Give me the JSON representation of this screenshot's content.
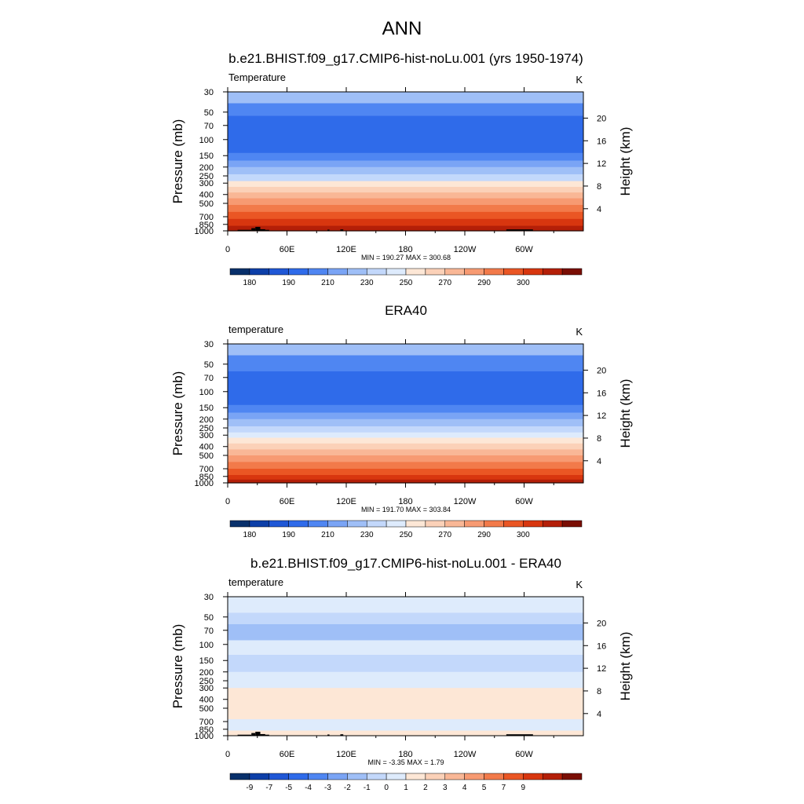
{
  "page": {
    "title": "ANN"
  },
  "colors": {
    "palette": [
      "#08306b",
      "#0d3fa8",
      "#1f57d6",
      "#2f6bea",
      "#4f86f2",
      "#7aa4f5",
      "#9fbff7",
      "#c3d8fb",
      "#deebfc",
      "#fde7d6",
      "#fbd1b8",
      "#f9b796",
      "#f79a72",
      "#f27a4a",
      "#ea5624",
      "#d8360f",
      "#b41f08",
      "#7a0e04"
    ]
  },
  "chart_data": [
    {
      "type": "heatmap",
      "title": "b.e21.BHIST.f09_g17.CMIP6-hist-noLu.001 (yrs 1950-1974)",
      "left_label": "Temperature",
      "units": "K",
      "ylabel": "Pressure (mb)",
      "ylabel_right": "Height (km)",
      "x_ticks": [
        "0",
        "60E",
        "120E",
        "180",
        "120W",
        "60W"
      ],
      "p_ticks": [
        "30",
        "50",
        "70",
        "100",
        "150",
        "200",
        "250",
        "300",
        "400",
        "500",
        "700",
        "850",
        "1000"
      ],
      "h_ticks": [
        "20",
        "16",
        "12",
        "8",
        "4"
      ],
      "minmax": "MIN = 190.27  MAX = 300.68",
      "colorbar_labels": [
        "180",
        "190",
        "210",
        "230",
        "250",
        "270",
        "290",
        "300"
      ],
      "bands": [
        {
          "p_top": 30,
          "p_bottom": 40,
          "color_index": 6
        },
        {
          "p_top": 40,
          "p_bottom": 55,
          "color_index": 4
        },
        {
          "p_top": 55,
          "p_bottom": 140,
          "color_index": 3
        },
        {
          "p_top": 140,
          "p_bottom": 170,
          "color_index": 4
        },
        {
          "p_top": 170,
          "p_bottom": 200,
          "color_index": 5
        },
        {
          "p_top": 200,
          "p_bottom": 240,
          "color_index": 6
        },
        {
          "p_top": 240,
          "p_bottom": 285,
          "color_index": 7
        },
        {
          "p_top": 285,
          "p_bottom": 330,
          "color_index": 9
        },
        {
          "p_top": 330,
          "p_bottom": 380,
          "color_index": 10
        },
        {
          "p_top": 380,
          "p_bottom": 440,
          "color_index": 11
        },
        {
          "p_top": 440,
          "p_bottom": 520,
          "color_index": 12
        },
        {
          "p_top": 520,
          "p_bottom": 620,
          "color_index": 13
        },
        {
          "p_top": 620,
          "p_bottom": 740,
          "color_index": 14
        },
        {
          "p_top": 740,
          "p_bottom": 880,
          "color_index": 15
        },
        {
          "p_top": 880,
          "p_bottom": 1000,
          "color_index": 16
        }
      ],
      "terrain": [
        {
          "lon_start": 10,
          "lon_end": 24,
          "p_top": 975
        },
        {
          "lon_start": 24,
          "lon_end": 28,
          "p_top": 935
        },
        {
          "lon_start": 28,
          "lon_end": 33,
          "p_top": 905
        },
        {
          "lon_start": 33,
          "lon_end": 38,
          "p_top": 960
        },
        {
          "lon_start": 38,
          "lon_end": 42,
          "p_top": 975
        },
        {
          "lon_start": 101,
          "lon_end": 103,
          "p_top": 970
        },
        {
          "lon_start": 114,
          "lon_end": 117,
          "p_top": 965
        },
        {
          "lon_start": 282,
          "lon_end": 309,
          "p_top": 965
        }
      ]
    },
    {
      "type": "heatmap",
      "title": "ERA40",
      "left_label": "temperature",
      "units": "K",
      "ylabel": "Pressure (mb)",
      "ylabel_right": "Height (km)",
      "x_ticks": [
        "0",
        "60E",
        "120E",
        "180",
        "120W",
        "60W"
      ],
      "p_ticks": [
        "30",
        "50",
        "70",
        "100",
        "150",
        "200",
        "250",
        "300",
        "400",
        "500",
        "700",
        "850",
        "1000"
      ],
      "h_ticks": [
        "20",
        "16",
        "12",
        "8",
        "4"
      ],
      "minmax": "MIN = 191.70  MAX = 303.84",
      "colorbar_labels": [
        "180",
        "190",
        "210",
        "230",
        "250",
        "270",
        "290",
        "300"
      ],
      "bands": [
        {
          "p_top": 30,
          "p_bottom": 40,
          "color_index": 6
        },
        {
          "p_top": 40,
          "p_bottom": 60,
          "color_index": 4
        },
        {
          "p_top": 60,
          "p_bottom": 140,
          "color_index": 3
        },
        {
          "p_top": 140,
          "p_bottom": 170,
          "color_index": 4
        },
        {
          "p_top": 170,
          "p_bottom": 200,
          "color_index": 5
        },
        {
          "p_top": 200,
          "p_bottom": 240,
          "color_index": 6
        },
        {
          "p_top": 240,
          "p_bottom": 280,
          "color_index": 7
        },
        {
          "p_top": 280,
          "p_bottom": 320,
          "color_index": 8
        },
        {
          "p_top": 320,
          "p_bottom": 370,
          "color_index": 9
        },
        {
          "p_top": 370,
          "p_bottom": 430,
          "color_index": 10
        },
        {
          "p_top": 430,
          "p_bottom": 500,
          "color_index": 11
        },
        {
          "p_top": 500,
          "p_bottom": 590,
          "color_index": 12
        },
        {
          "p_top": 590,
          "p_bottom": 700,
          "color_index": 13
        },
        {
          "p_top": 700,
          "p_bottom": 820,
          "color_index": 14
        },
        {
          "p_top": 820,
          "p_bottom": 920,
          "color_index": 15
        },
        {
          "p_top": 920,
          "p_bottom": 1000,
          "color_index": 16
        }
      ],
      "terrain": []
    },
    {
      "type": "heatmap",
      "title": "b.e21.BHIST.f09_g17.CMIP6-hist-noLu.001 - ERA40",
      "left_label": "temperature",
      "units": "K",
      "ylabel": "Pressure (mb)",
      "ylabel_right": "Height (km)",
      "x_ticks": [
        "0",
        "60E",
        "120E",
        "180",
        "120W",
        "60W"
      ],
      "p_ticks": [
        "30",
        "50",
        "70",
        "100",
        "150",
        "200",
        "250",
        "300",
        "400",
        "500",
        "700",
        "850",
        "1000"
      ],
      "h_ticks": [
        "20",
        "16",
        "12",
        "8",
        "4"
      ],
      "minmax": "MIN =  -3.35  MAX =   1.79",
      "colorbar_labels": [
        "-9",
        "-7",
        "-5",
        "-4",
        "-3",
        "-2",
        "-1",
        "0",
        "1",
        "2",
        "3",
        "4",
        "5",
        "7",
        "9"
      ],
      "bands": [
        {
          "p_top": 30,
          "p_bottom": 45,
          "color_index": 8
        },
        {
          "p_top": 45,
          "p_bottom": 60,
          "color_index": 7
        },
        {
          "p_top": 60,
          "p_bottom": 90,
          "color_index": 6
        },
        {
          "p_top": 90,
          "p_bottom": 130,
          "color_index": 8
        },
        {
          "p_top": 130,
          "p_bottom": 200,
          "color_index": 7
        },
        {
          "p_top": 200,
          "p_bottom": 300,
          "color_index": 8
        },
        {
          "p_top": 300,
          "p_bottom": 660,
          "color_index": 9
        },
        {
          "p_top": 660,
          "p_bottom": 880,
          "color_index": 8
        },
        {
          "p_top": 880,
          "p_bottom": 1000,
          "color_index": 9
        }
      ],
      "terrain": [
        {
          "lon_start": 10,
          "lon_end": 24,
          "p_top": 975
        },
        {
          "lon_start": 24,
          "lon_end": 28,
          "p_top": 935
        },
        {
          "lon_start": 28,
          "lon_end": 33,
          "p_top": 905
        },
        {
          "lon_start": 33,
          "lon_end": 38,
          "p_top": 960
        },
        {
          "lon_start": 38,
          "lon_end": 42,
          "p_top": 975
        },
        {
          "lon_start": 101,
          "lon_end": 103,
          "p_top": 970
        },
        {
          "lon_start": 114,
          "lon_end": 117,
          "p_top": 965
        },
        {
          "lon_start": 282,
          "lon_end": 309,
          "p_top": 965
        }
      ]
    }
  ]
}
